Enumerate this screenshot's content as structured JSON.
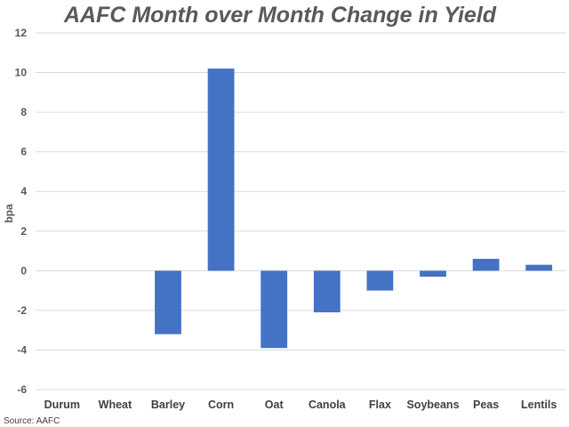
{
  "source_note": "Source: AAFC",
  "chart_data": {
    "type": "bar",
    "title": "AAFC Month over Month Change in Yield",
    "xlabel": "",
    "ylabel": "bpa",
    "categories": [
      "Durum",
      "Wheat",
      "Barley",
      "Corn",
      "Oat",
      "Canola",
      "Flax",
      "Soybeans",
      "Peas",
      "Lentils"
    ],
    "values": [
      0,
      0,
      -3.2,
      10.2,
      -3.9,
      -2.1,
      -1.0,
      -0.3,
      0.6,
      0.3
    ],
    "ylim": [
      -6,
      12
    ],
    "yticks": [
      -6,
      -4,
      -2,
      0,
      2,
      4,
      6,
      8,
      10,
      12
    ],
    "grid": true,
    "legend": "none",
    "bar_color": "#4472C4",
    "grid_color": "#d9d9d9"
  }
}
